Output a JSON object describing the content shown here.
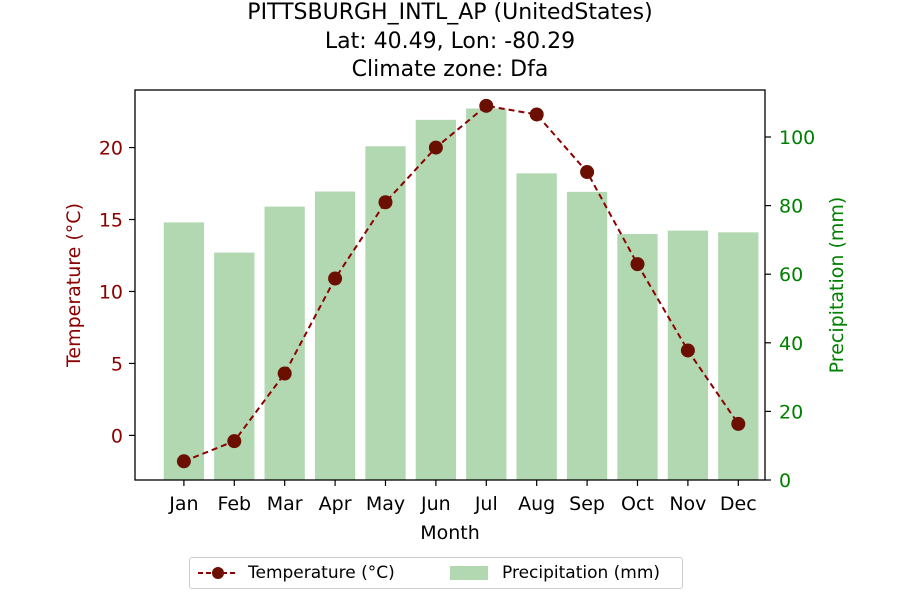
{
  "titles": {
    "line1": "PITTSBURGH_INTL_AP (UnitedStates)",
    "line2": "Lat: 40.49, Lon: -80.29",
    "line3": "Climate zone: Dfa"
  },
  "legend": {
    "temperature": "Temperature (°C)",
    "precipitation": "Precipitation (mm)"
  },
  "colors": {
    "temperature": "#8b0000",
    "precipitation_bar": "#b2d8b2",
    "precipitation_axis": "#008000"
  },
  "chart_data": {
    "type": "bar",
    "categories": [
      "Jan",
      "Feb",
      "Mar",
      "Apr",
      "May",
      "Jun",
      "Jul",
      "Aug",
      "Sep",
      "Oct",
      "Nov",
      "Dec"
    ],
    "xlabel": "Month",
    "series": [
      {
        "name": "Temperature (°C)",
        "type": "line",
        "axis": "left",
        "values": [
          -1.8,
          -0.4,
          4.3,
          10.9,
          16.2,
          20.0,
          22.9,
          22.3,
          18.3,
          11.9,
          5.9,
          0.8
        ]
      },
      {
        "name": "Precipitation (mm)",
        "type": "bar",
        "axis": "right",
        "values": [
          75.1,
          66.3,
          79.7,
          84.1,
          97.3,
          105.0,
          108.3,
          89.4,
          84.0,
          71.7,
          72.7,
          72.2
        ]
      }
    ],
    "y_left": {
      "label": "Temperature (°C)",
      "ylim": [
        -3.1,
        24.0
      ],
      "ticks": [
        0,
        5,
        10,
        15,
        20
      ]
    },
    "y_right": {
      "label": "Precipitation (mm)",
      "ylim": [
        0,
        113.7
      ],
      "ticks": [
        0,
        20,
        40,
        60,
        80,
        100
      ]
    },
    "grid": false,
    "legend_position": "bottom-center"
  }
}
